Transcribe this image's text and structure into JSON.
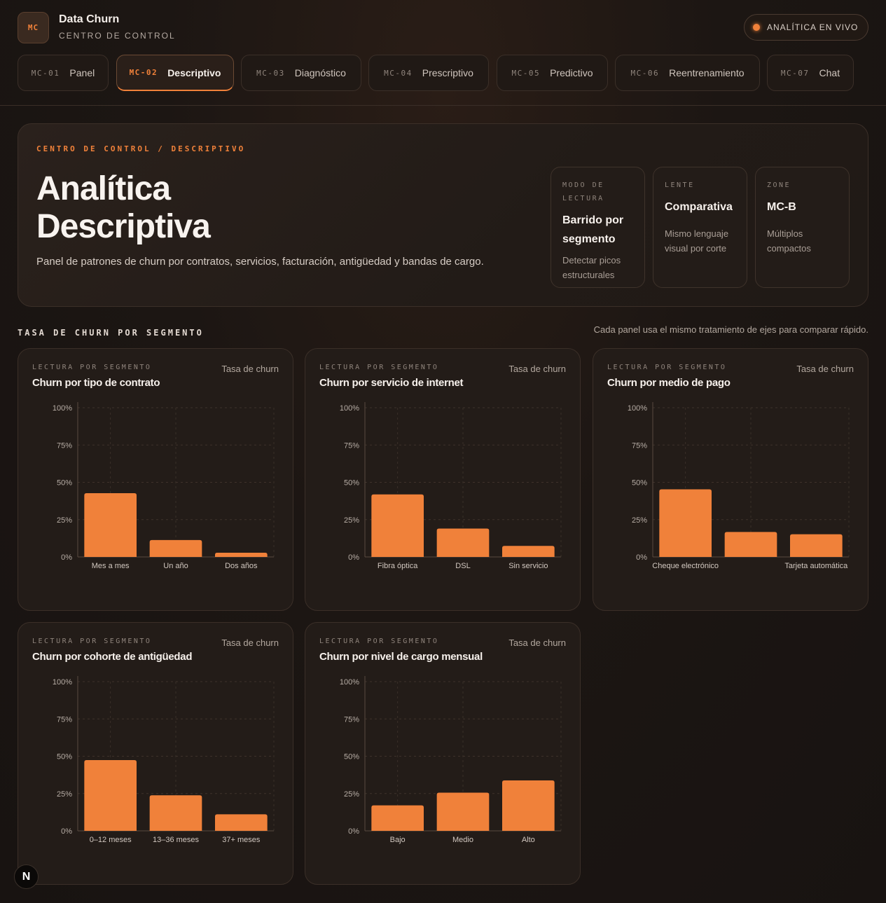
{
  "brand": {
    "badge": "MC",
    "title": "Data Churn",
    "subtitle": "CENTRO DE CONTROL"
  },
  "live": {
    "label": "ANALÍTICA EN VIVO",
    "color": "#f0813a"
  },
  "tabs": [
    {
      "code": "MC-01",
      "label": "Panel",
      "active": false
    },
    {
      "code": "MC-02",
      "label": "Descriptivo",
      "active": true
    },
    {
      "code": "MC-03",
      "label": "Diagnóstico",
      "active": false
    },
    {
      "code": "MC-04",
      "label": "Prescriptivo",
      "active": false
    },
    {
      "code": "MC-05",
      "label": "Predictivo",
      "active": false
    },
    {
      "code": "MC-06",
      "label": "Reentrenamiento",
      "active": false
    },
    {
      "code": "MC-07",
      "label": "Chat",
      "active": false
    }
  ],
  "hero": {
    "breadcrumb": "CENTRO DE CONTROL / DESCRIPTIVO",
    "title_line1": "Analítica",
    "title_line2": "Descriptiva",
    "description": "Panel de patrones de churn por contratos, servicios, facturación, antigüedad y bandas de cargo.",
    "cards": [
      {
        "label": "MODO DE LECTURA",
        "value": "Barrido por segmento",
        "note": "Detectar picos estructurales"
      },
      {
        "label": "LENTE",
        "value": "Comparativa",
        "note": "Mismo lenguaje visual por corte"
      },
      {
        "label": "ZONE",
        "value": "MC-B",
        "note": "Múltiplos compactos"
      }
    ]
  },
  "section": {
    "title": "TASA DE CHURN POR SEGMENTO",
    "note": "Cada panel usa el mismo tratamiento de ejes para comparar rápido."
  },
  "chart_data": [
    {
      "type": "bar",
      "kicker": "LECTURA POR SEGMENTO",
      "title": "Churn por tipo de contrato",
      "metric": "Tasa de churn",
      "categories": [
        "Mes a mes",
        "Un año",
        "Dos años"
      ],
      "category_labels": [
        "Mes a mes",
        "Un año",
        "Dos años"
      ],
      "values": [
        42.7,
        11.3,
        2.8
      ],
      "ylim": [
        0,
        100
      ],
      "yticks": [
        "0%",
        "25%",
        "50%",
        "75%",
        "100%"
      ],
      "color": "#f0813a",
      "grid": true
    },
    {
      "type": "bar",
      "kicker": "LECTURA POR SEGMENTO",
      "title": "Churn por servicio de internet",
      "metric": "Tasa de churn",
      "categories": [
        "Fibra óptica",
        "DSL",
        "Sin servicio"
      ],
      "category_labels": [
        "Fibra óptica",
        "DSL",
        "Sin servicio"
      ],
      "values": [
        41.9,
        19.0,
        7.4
      ],
      "ylim": [
        0,
        100
      ],
      "yticks": [
        "0%",
        "25%",
        "50%",
        "75%",
        "100%"
      ],
      "color": "#f0813a",
      "grid": true
    },
    {
      "type": "bar",
      "kicker": "LECTURA POR SEGMENTO",
      "title": "Churn por medio de pago",
      "metric": "Tasa de churn",
      "categories": [
        "Cheque electrónico",
        "",
        "Tarjeta automática"
      ],
      "category_labels": [
        "Cheque electrónico",
        "",
        "Tarjeta automática"
      ],
      "values": [
        45.3,
        16.7,
        15.2
      ],
      "ylim": [
        0,
        100
      ],
      "yticks": [
        "0%",
        "25%",
        "50%",
        "75%",
        "100%"
      ],
      "color": "#f0813a",
      "grid": true
    },
    {
      "type": "bar",
      "kicker": "LECTURA POR SEGMENTO",
      "title": "Churn por cohorte de antigüedad",
      "metric": "Tasa de churn",
      "categories": [
        "0–12 meses",
        "13–36 meses",
        "37+ meses"
      ],
      "category_labels": [
        "0–12 meses",
        "13–36 meses",
        "37+ meses"
      ],
      "values": [
        47.4,
        23.8,
        11.1
      ],
      "ylim": [
        0,
        100
      ],
      "yticks": [
        "0%",
        "25%",
        "50%",
        "75%",
        "100%"
      ],
      "color": "#f0813a",
      "grid": true
    },
    {
      "type": "bar",
      "kicker": "LECTURA POR SEGMENTO",
      "title": "Churn por nivel de cargo mensual",
      "metric": "Tasa de churn",
      "categories": [
        "Bajo",
        "Medio",
        "Alto"
      ],
      "category_labels": [
        "Bajo",
        "Medio",
        "Alto"
      ],
      "values": [
        17.1,
        25.6,
        33.8
      ],
      "ylim": [
        0,
        100
      ],
      "yticks": [
        "0%",
        "25%",
        "50%",
        "75%",
        "100%"
      ],
      "color": "#f0813a",
      "grid": true
    }
  ],
  "framework_badge": "N"
}
